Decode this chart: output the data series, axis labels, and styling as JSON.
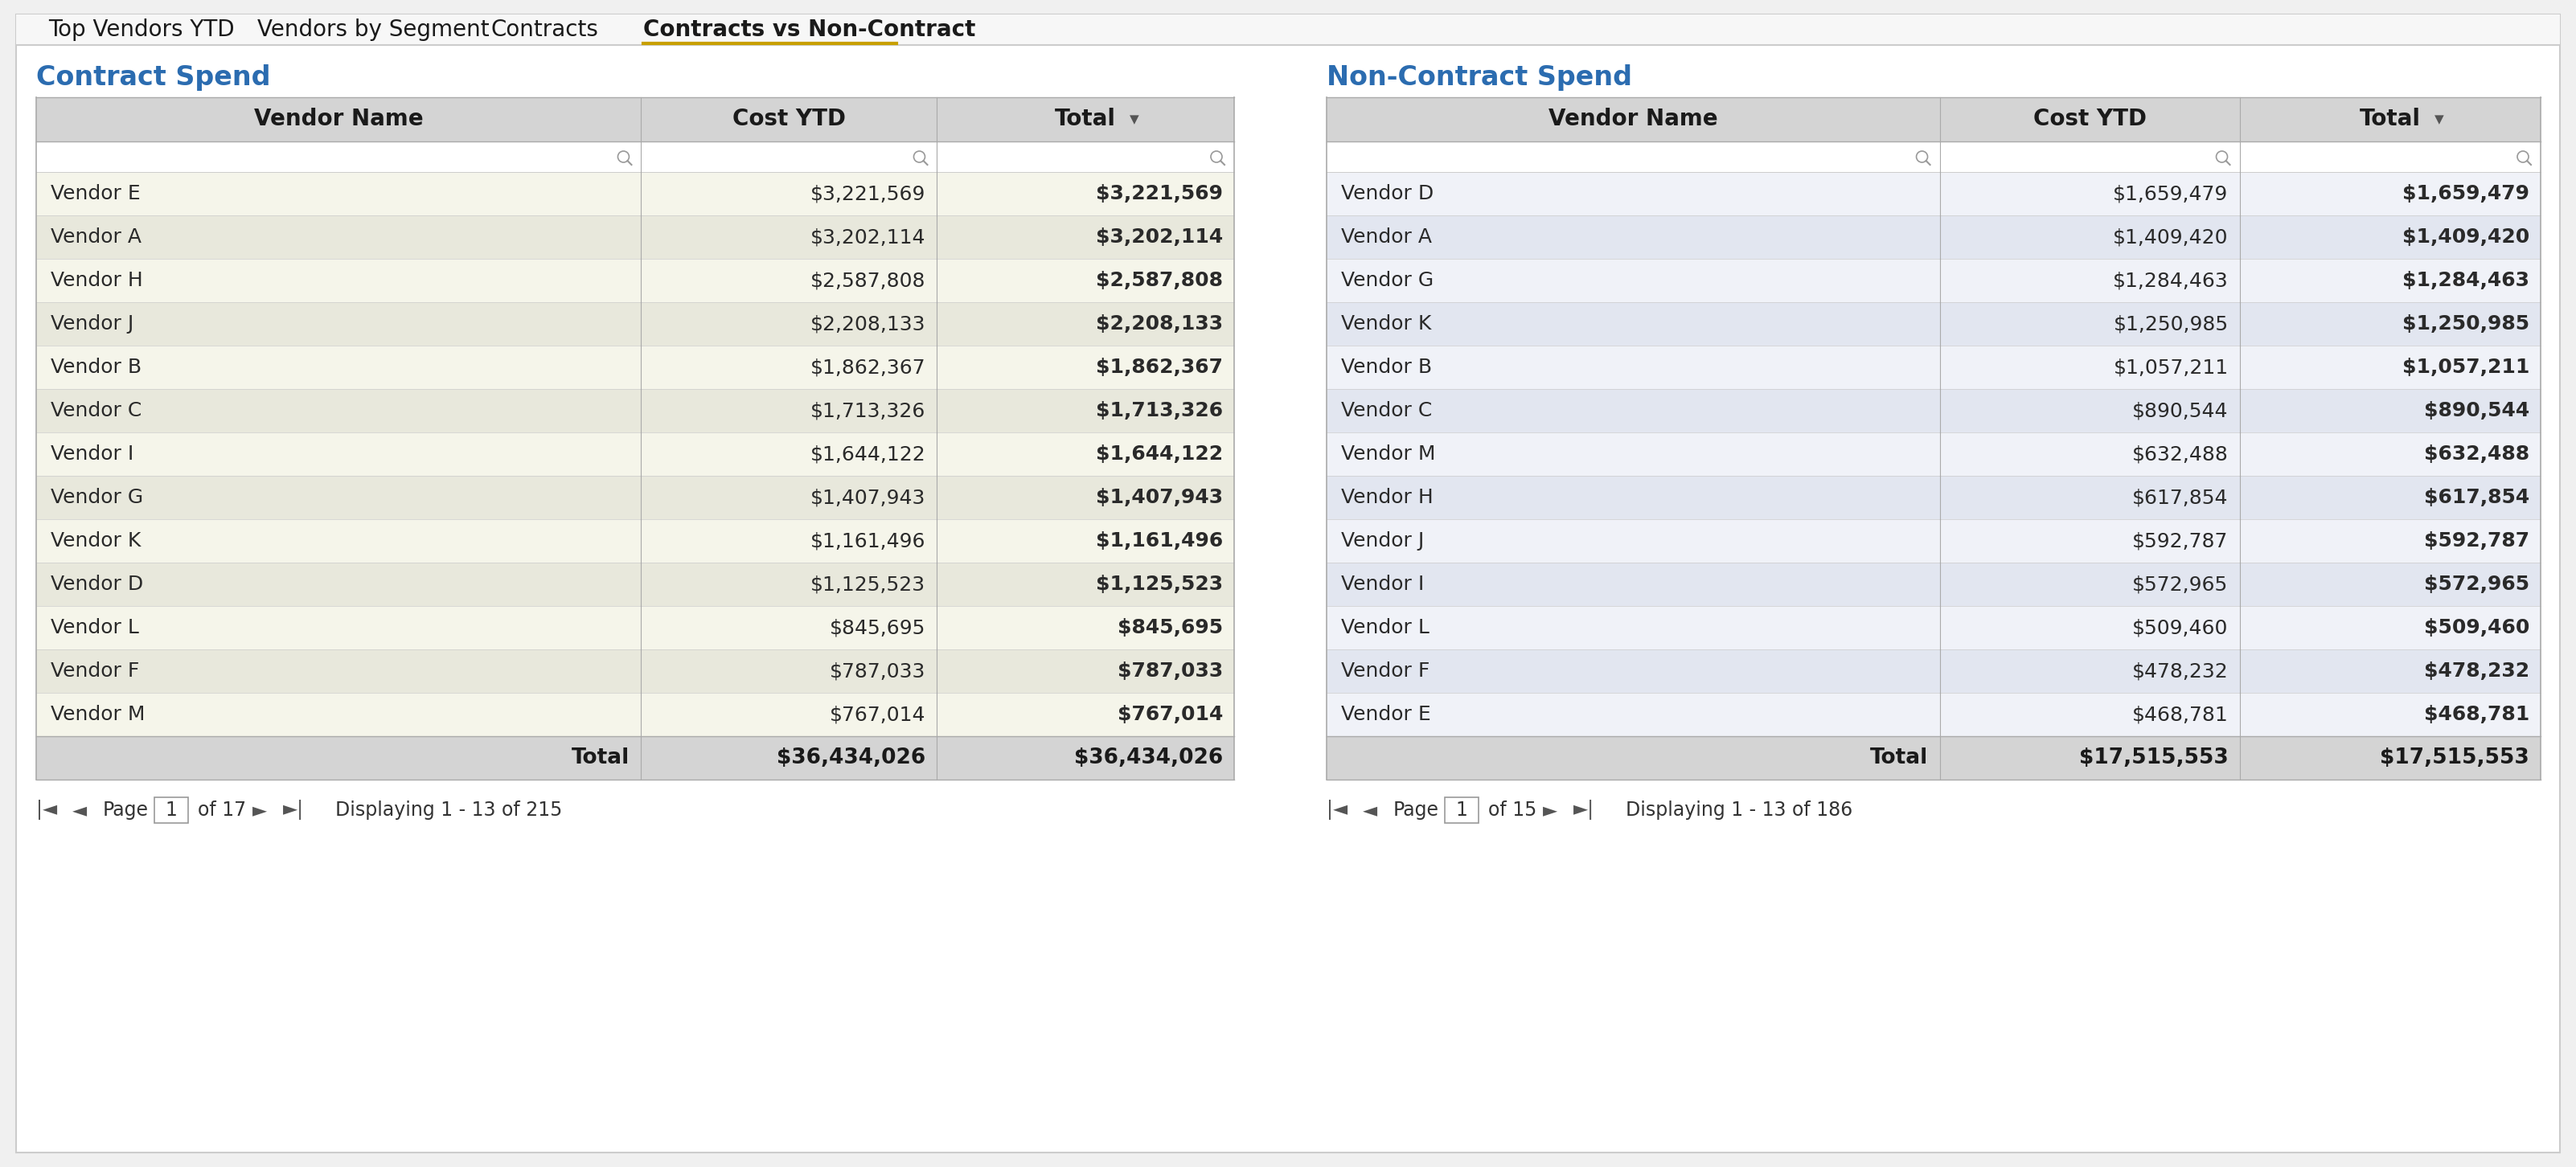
{
  "tab_items": [
    "Top Vendors YTD",
    "Vendors by Segment",
    "Contracts",
    "Contracts vs Non-Contract"
  ],
  "active_tab_idx": 3,
  "contract_title": "Contract Spend",
  "non_contract_title": "Non-Contract Spend",
  "contract_headers": [
    "Vendor Name",
    "Cost YTD",
    "Total"
  ],
  "non_contract_headers": [
    "Vendor Name",
    "Cost YTD",
    "Total"
  ],
  "contract_data": [
    [
      "Vendor E",
      "$3,221,569",
      "$3,221,569"
    ],
    [
      "Vendor A",
      "$3,202,114",
      "$3,202,114"
    ],
    [
      "Vendor H",
      "$2,587,808",
      "$2,587,808"
    ],
    [
      "Vendor J",
      "$2,208,133",
      "$2,208,133"
    ],
    [
      "Vendor B",
      "$1,862,367",
      "$1,862,367"
    ],
    [
      "Vendor C",
      "$1,713,326",
      "$1,713,326"
    ],
    [
      "Vendor I",
      "$1,644,122",
      "$1,644,122"
    ],
    [
      "Vendor G",
      "$1,407,943",
      "$1,407,943"
    ],
    [
      "Vendor K",
      "$1,161,496",
      "$1,161,496"
    ],
    [
      "Vendor D",
      "$1,125,523",
      "$1,125,523"
    ],
    [
      "Vendor L",
      "$845,695",
      "$845,695"
    ],
    [
      "Vendor F",
      "$787,033",
      "$787,033"
    ],
    [
      "Vendor M",
      "$767,014",
      "$767,014"
    ]
  ],
  "contract_total_label": "Total",
  "contract_total_ytd": "$36,434,026",
  "contract_total": "$36,434,026",
  "contract_page_info": "of 17",
  "contract_display_info": "Displaying 1 - 13 of 215",
  "non_contract_data": [
    [
      "Vendor D",
      "$1,659,479",
      "$1,659,479"
    ],
    [
      "Vendor A",
      "$1,409,420",
      "$1,409,420"
    ],
    [
      "Vendor G",
      "$1,284,463",
      "$1,284,463"
    ],
    [
      "Vendor K",
      "$1,250,985",
      "$1,250,985"
    ],
    [
      "Vendor B",
      "$1,057,211",
      "$1,057,211"
    ],
    [
      "Vendor C",
      "$890,544",
      "$890,544"
    ],
    [
      "Vendor M",
      "$632,488",
      "$632,488"
    ],
    [
      "Vendor H",
      "$617,854",
      "$617,854"
    ],
    [
      "Vendor J",
      "$592,787",
      "$592,787"
    ],
    [
      "Vendor I",
      "$572,965",
      "$572,965"
    ],
    [
      "Vendor L",
      "$509,460",
      "$509,460"
    ],
    [
      "Vendor F",
      "$478,232",
      "$478,232"
    ],
    [
      "Vendor E",
      "$468,781",
      "$468,781"
    ]
  ],
  "non_contract_total_label": "Total",
  "non_contract_total_ytd": "$17,515,553",
  "non_contract_total": "$17,515,553",
  "non_contract_page_info": "of 15",
  "non_contract_display_info": "Displaying 1 - 13 of 186",
  "bg_color": "#f0f0f0",
  "panel_bg": "#ffffff",
  "tab_bar_bg": "#f5f5f5",
  "header_bg": "#d4d4d4",
  "filter_row_bg": "#ffffff",
  "contract_odd_row_bg": "#f5f5ea",
  "contract_even_row_bg": "#e8e8dc",
  "non_contract_odd_row_bg": "#f0f2f8",
  "non_contract_even_row_bg": "#e2e6f0",
  "total_row_bg": "#d4d4d4",
  "header_text_color": "#1a1a1a",
  "row_text_color": "#2a2a2a",
  "total_text_color": "#1a1a1a",
  "contract_title_color": "#2b6cb0",
  "non_contract_title_color": "#2b6cb0",
  "active_tab_underline": "#c8a000",
  "outer_border_color": "#cccccc",
  "table_border_color": "#aaaaaa",
  "row_divider_color": "#cccccc"
}
